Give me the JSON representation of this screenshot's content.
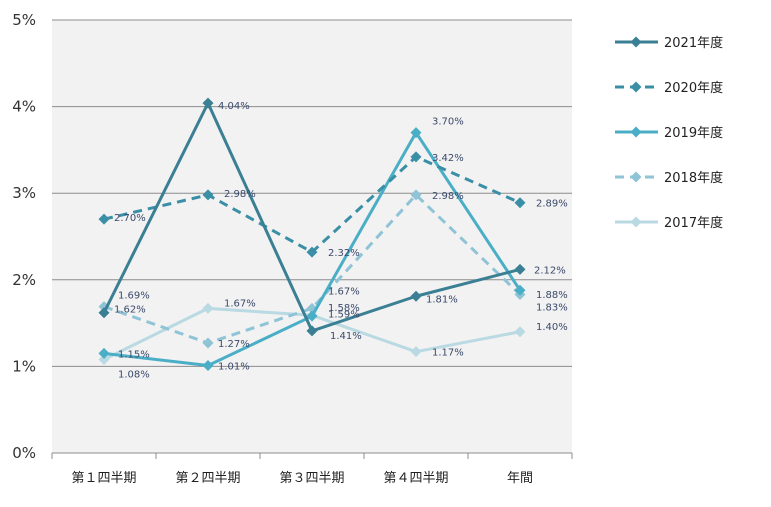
{
  "chart_data": {
    "type": "line",
    "categories": [
      "第１四半期",
      "第２四半期",
      "第３四半期",
      "第４四半期",
      "年間"
    ],
    "y_ticks": [
      "0%",
      "1%",
      "2%",
      "3%",
      "4%",
      "5%"
    ],
    "ylim": [
      0,
      5
    ],
    "grid": true,
    "legend_position": "right",
    "series": [
      {
        "name": "2021年度",
        "values": [
          1.62,
          4.04,
          1.41,
          1.81,
          2.12
        ],
        "labels": [
          "1.62%",
          "4.04%",
          "1.41%",
          "1.81%",
          "2.12%"
        ],
        "color": "#3a7f93",
        "dashed": false
      },
      {
        "name": "2020年度",
        "values": [
          2.7,
          2.98,
          2.32,
          3.42,
          2.89
        ],
        "labels": [
          "2.70%",
          "2.98%",
          "2.32%",
          "3.42%",
          "2.89%"
        ],
        "color": "#3a8fa6",
        "dashed": true
      },
      {
        "name": "2019年度",
        "values": [
          1.15,
          1.01,
          1.58,
          3.7,
          1.88
        ],
        "labels": [
          "1.15%",
          "1.01%",
          "1.58%",
          "3.70%",
          "1.88%"
        ],
        "color": "#4aaec6",
        "dashed": false
      },
      {
        "name": "2018年度",
        "values": [
          1.69,
          1.27,
          1.67,
          2.98,
          1.83
        ],
        "labels": [
          "1.69%",
          "1.27%",
          "1.67%",
          "2.98%",
          "1.83%"
        ],
        "color": "#8fc3d6",
        "dashed": true
      },
      {
        "name": "2017年度",
        "values": [
          1.08,
          1.67,
          1.59,
          1.17,
          1.4
        ],
        "labels": [
          "1.08%",
          "1.67%",
          "1.59%",
          "1.17%",
          "1.40%"
        ],
        "color": "#b9d9e3",
        "dashed": false
      }
    ]
  }
}
